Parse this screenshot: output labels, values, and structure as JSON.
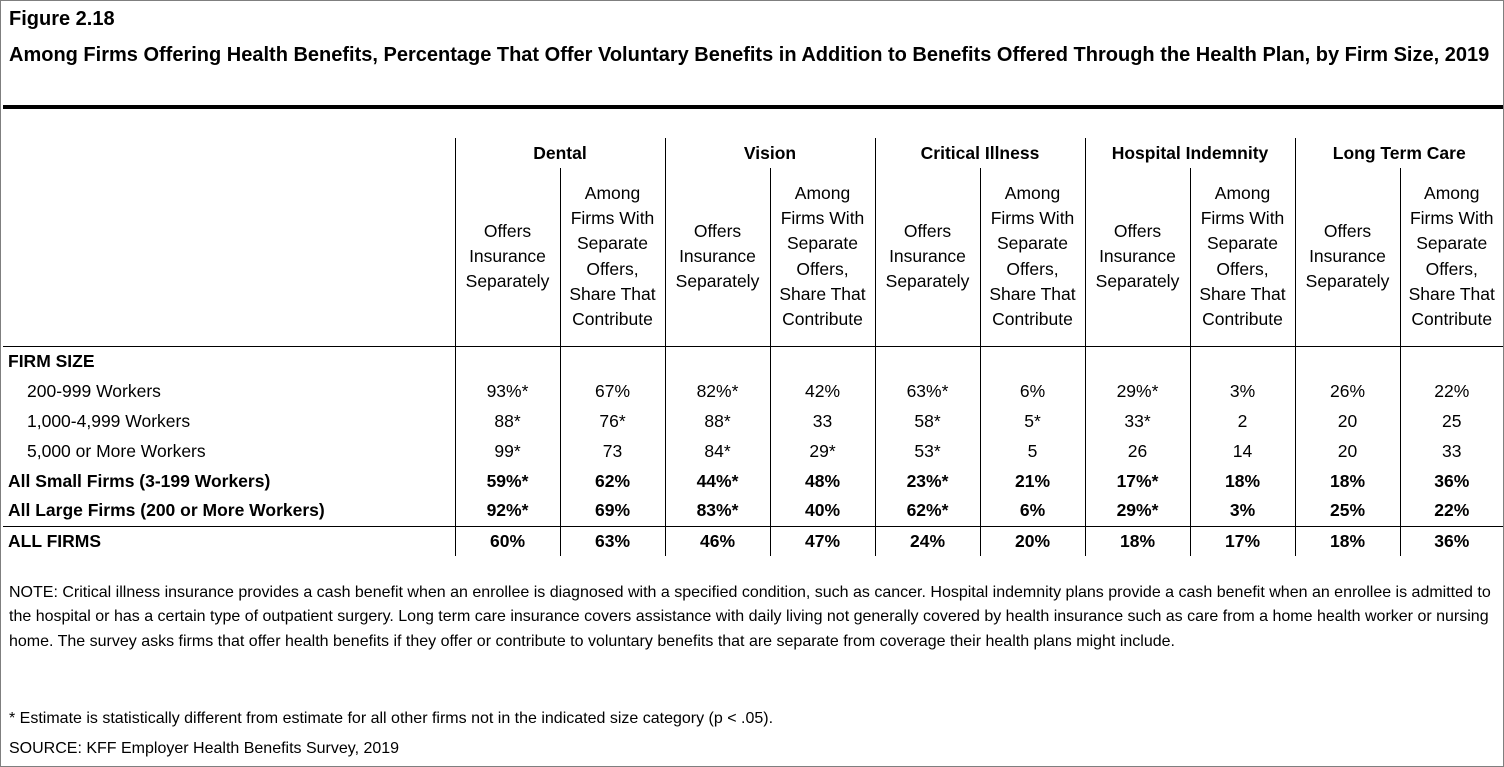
{
  "figure": {
    "label": "Figure 2.18",
    "title": "Among Firms Offering Health Benefits, Percentage That Offer Voluntary Benefits in Addition to Benefits Offered Through the Health Plan, by Firm Size, 2019"
  },
  "table": {
    "groups": [
      "Dental",
      "Vision",
      "Critical Illness",
      "Hospital Indemnity",
      "Long Term Care"
    ],
    "subheaders": {
      "offers": "Offers Insurance Separately",
      "contribute": "Among Firms With Separate Offers, Share That Contribute"
    },
    "section_label": "FIRM SIZE",
    "rows": [
      {
        "label": "200-999 Workers",
        "values": [
          "93%*",
          "67%",
          "82%*",
          "42%",
          "63%*",
          "6%",
          "29%*",
          "3%",
          "26%",
          "22%"
        ]
      },
      {
        "label": "1,000-4,999 Workers",
        "values": [
          "88*",
          "76*",
          "88*",
          "33",
          "58*",
          "5*",
          "33*",
          "2",
          "20",
          "25"
        ]
      },
      {
        "label": "5,000 or More Workers",
        "values": [
          "99*",
          "73",
          "84*",
          "29*",
          "53*",
          "5",
          "26",
          "14",
          "20",
          "33"
        ]
      },
      {
        "label": "All Small Firms (3-199 Workers)",
        "values": [
          "59%*",
          "62%",
          "44%*",
          "48%",
          "23%*",
          "21%",
          "17%*",
          "18%",
          "18%",
          "36%"
        ]
      },
      {
        "label": "All Large Firms (200 or More Workers)",
        "values": [
          "92%*",
          "69%",
          "83%*",
          "40%",
          "62%*",
          "6%",
          "29%*",
          "3%",
          "25%",
          "22%"
        ]
      },
      {
        "label": "ALL FIRMS",
        "values": [
          "60%",
          "63%",
          "46%",
          "47%",
          "24%",
          "20%",
          "18%",
          "17%",
          "18%",
          "36%"
        ]
      }
    ]
  },
  "note": "NOTE: Critical illness insurance provides a cash benefit when an enrollee is diagnosed with a specified condition, such as cancer. Hospital indemnity plans provide a cash benefit when an enrollee is admitted to the hospital or has a certain type of outpatient surgery. Long term care insurance covers assistance with daily living not generally covered by health insurance such as care from a home health worker or nursing home. The survey asks firms that offer health benefits if they offer or contribute to voluntary benefits that are separate from coverage their health plans might include.",
  "footnote": "* Estimate is statistically different from estimate for all other firms not in the indicated size category (p < .05).",
  "source": "SOURCE: KFF Employer Health Benefits Survey, 2019"
}
